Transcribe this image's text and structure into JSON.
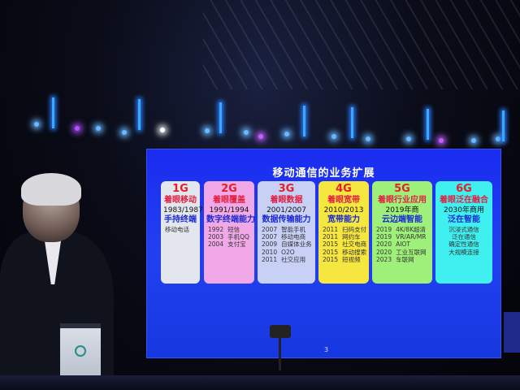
{
  "slide": {
    "title": "移动通信的业务扩展",
    "page_number": "3",
    "cards": [
      {
        "gen": "1G",
        "focus": "着眼移动",
        "years": "1983/1987",
        "capability": "手持终端",
        "events": [
          {
            "year": "",
            "text": "移动电话"
          }
        ],
        "color": "#e4e6ee"
      },
      {
        "gen": "2G",
        "focus": "着眼覆盖",
        "years": "1991/1994",
        "capability": "数字终端能力",
        "events": [
          {
            "year": "1992",
            "text": "短信"
          },
          {
            "year": "2003",
            "text": "手机QQ"
          },
          {
            "year": "2004",
            "text": "支付宝"
          }
        ],
        "color": "#f0a8e6"
      },
      {
        "gen": "3G",
        "focus": "着眼数据",
        "years": "2001/2007",
        "capability": "数据传输能力",
        "events": [
          {
            "year": "2007",
            "text": "智能手机"
          },
          {
            "year": "2007",
            "text": "移动电商"
          },
          {
            "year": "2009",
            "text": "自媒体业务"
          },
          {
            "year": "2010",
            "text": "O2O"
          },
          {
            "year": "2011",
            "text": "社交应用"
          }
        ],
        "color": "#c8d0f6"
      },
      {
        "gen": "4G",
        "focus": "着眼宽带",
        "years": "2010/2013",
        "capability": "宽带能力",
        "events": [
          {
            "year": "2011",
            "text": "扫码支付"
          },
          {
            "year": "2011",
            "text": "网约车"
          },
          {
            "year": "2015",
            "text": "社交电商"
          },
          {
            "year": "2015",
            "text": "移动搜索"
          },
          {
            "year": "2015",
            "text": "短视频"
          }
        ],
        "color": "#f6e640"
      },
      {
        "gen": "5G",
        "focus": "着眼行业应用",
        "years": "2019年商",
        "capability": "云边端智能",
        "events": [
          {
            "year": "2019",
            "text": "4K/8K超清"
          },
          {
            "year": "2019",
            "text": "VR/AR/MR"
          },
          {
            "year": "2020",
            "text": "AIOT"
          },
          {
            "year": "2020",
            "text": "工业互联网"
          },
          {
            "year": "2023",
            "text": "车联网"
          }
        ],
        "color": "#9ef07a"
      },
      {
        "gen": "6G",
        "focus": "着眼泛在融合",
        "years": "2030年商用",
        "capability": "泛在智能",
        "events": [
          {
            "year": "",
            "text": "沉浸式通信"
          },
          {
            "year": "",
            "text": "泛在通信"
          },
          {
            "year": "",
            "text": "确定性通信"
          },
          {
            "year": "",
            "text": "大规模连接"
          }
        ],
        "color": "#40f0f0"
      }
    ]
  }
}
